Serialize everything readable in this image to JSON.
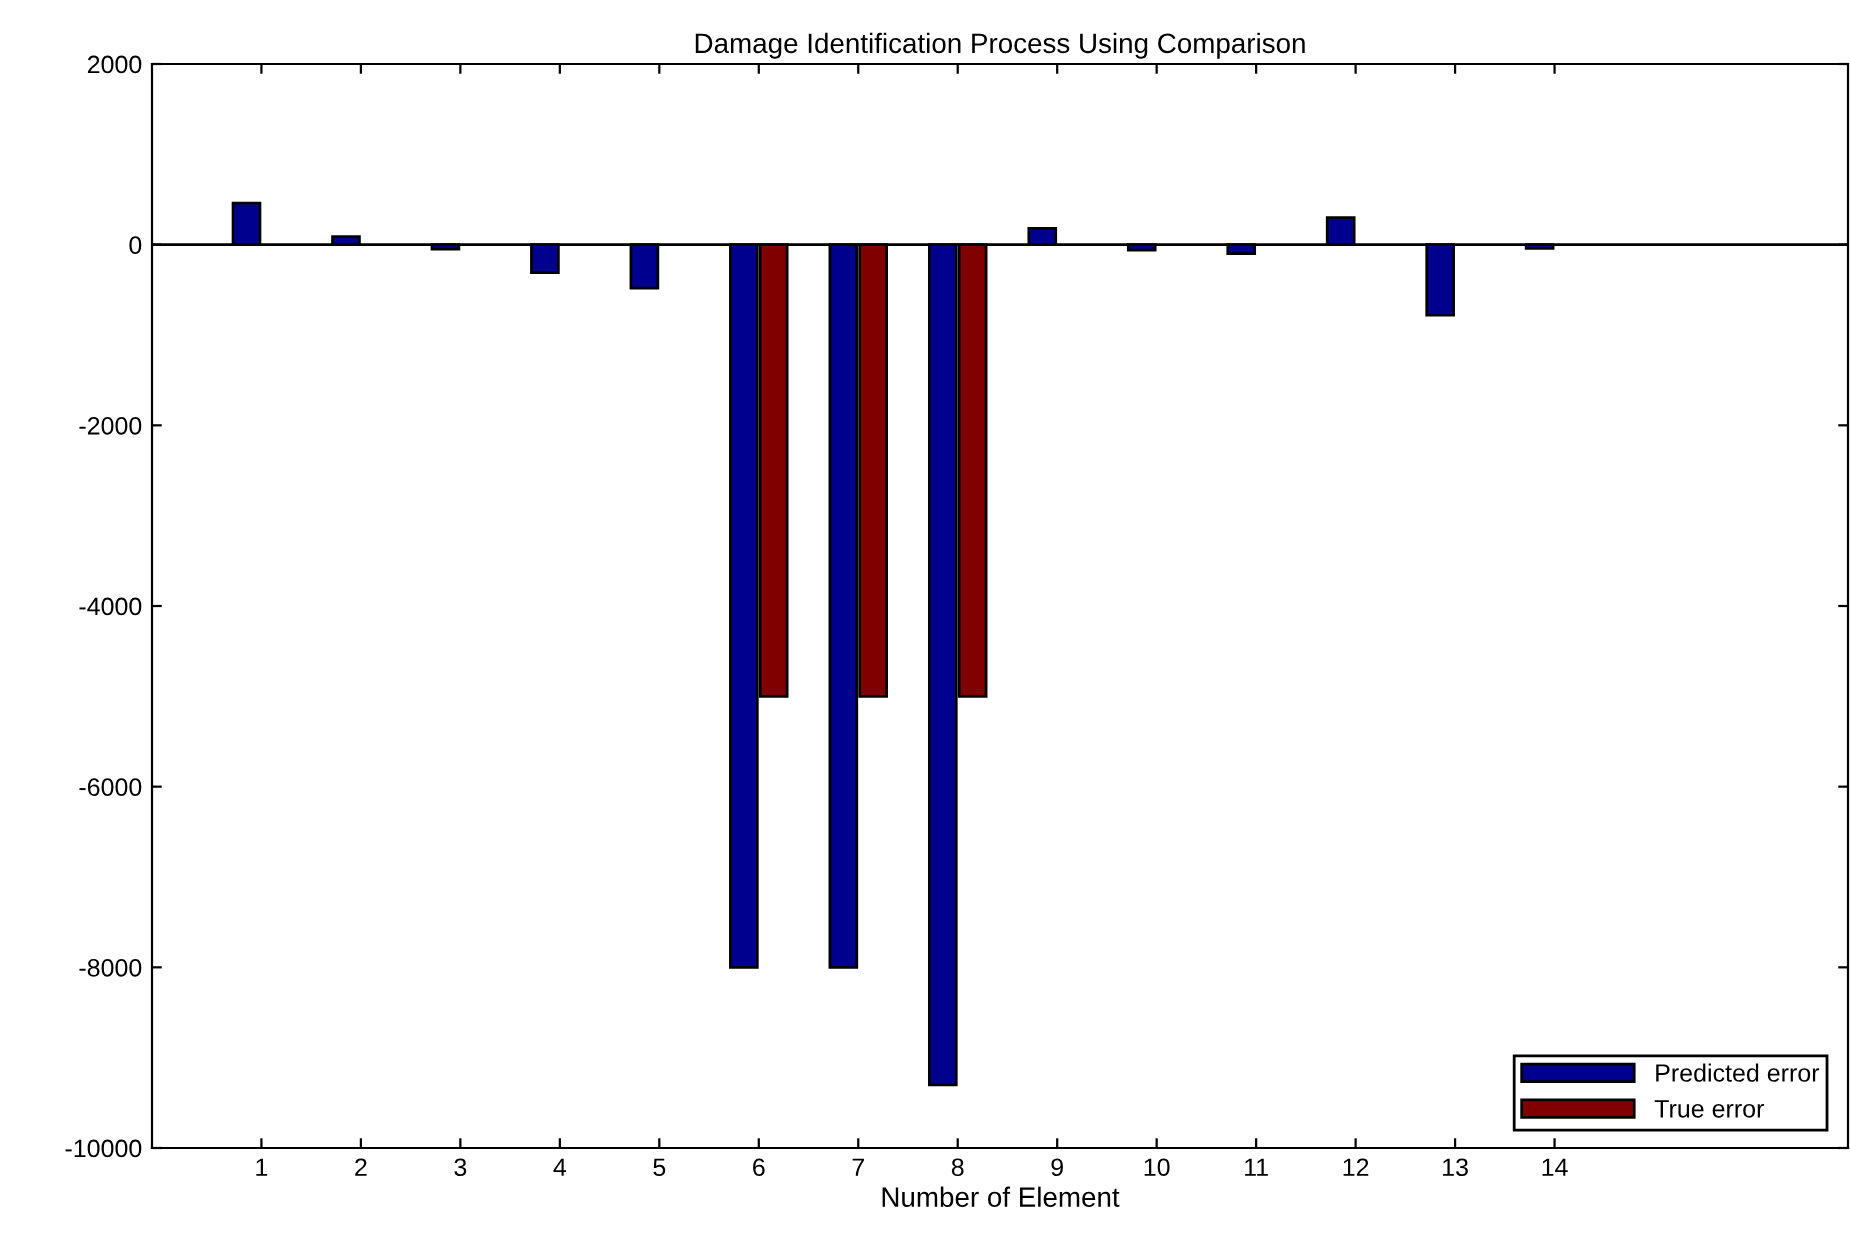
{
  "chart_data": {
    "type": "bar",
    "title": "Damage Identification Process Using Comparison",
    "xlabel": "Number of Element",
    "categories": [
      "1",
      "2",
      "3",
      "4",
      "5",
      "6",
      "7",
      "8",
      "9",
      "10",
      "11",
      "12",
      "13",
      "14"
    ],
    "series": [
      {
        "name": "Predicted error",
        "color": "#00008f",
        "values": [
          460,
          90,
          -50,
          -310,
          -480,
          -8000,
          -8000,
          -9300,
          180,
          -60,
          -100,
          300,
          -780,
          -40
        ]
      },
      {
        "name": "True error",
        "color": "#800000",
        "values": [
          null,
          null,
          null,
          null,
          null,
          -5000,
          -5000,
          -5000,
          null,
          null,
          null,
          null,
          null,
          null
        ]
      }
    ],
    "ylim": [
      -10000,
      2000
    ],
    "yticks": [
      -10000,
      -8000,
      -6000,
      -4000,
      -2000,
      0,
      2000
    ],
    "legend": "bottom right"
  }
}
